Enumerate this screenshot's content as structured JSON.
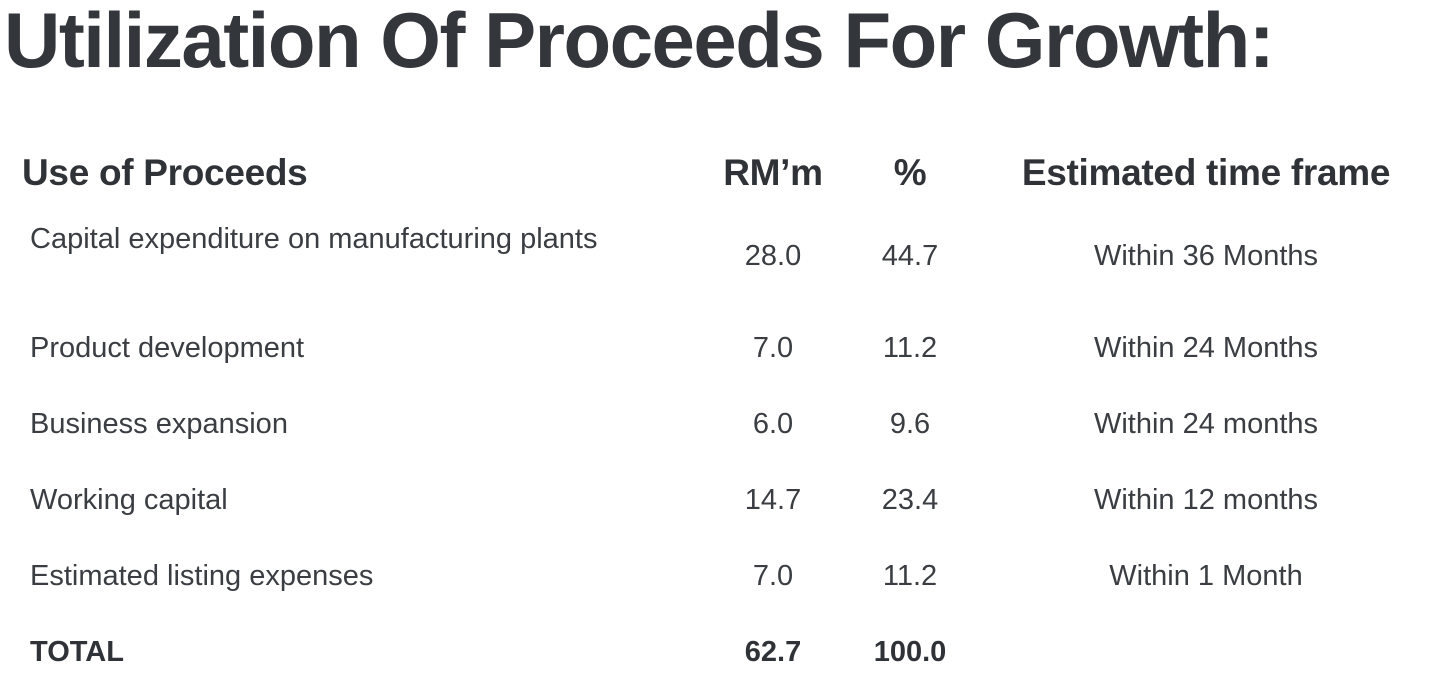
{
  "title": "Utilization Of Proceeds For Growth:",
  "table": {
    "headers": {
      "use": "Use of Proceeds",
      "rm": "RM’m",
      "pct": "%",
      "time": "Estimated time frame"
    },
    "rows": [
      {
        "use": "Capital expenditure on manufacturing plants",
        "rm": "28.0",
        "pct": "44.7",
        "time": "Within 36 Months"
      },
      {
        "use": "Product development",
        "rm": "7.0",
        "pct": "11.2",
        "time": "Within 24 Months"
      },
      {
        "use": "Business expansion",
        "rm": "6.0",
        "pct": "9.6",
        "time": "Within 24 months"
      },
      {
        "use": "Working capital",
        "rm": "14.7",
        "pct": "23.4",
        "time": "Within 12 months"
      },
      {
        "use": "Estimated listing expenses",
        "rm": "7.0",
        "pct": "11.2",
        "time": "Within 1 Month"
      }
    ],
    "total": {
      "label": "TOTAL",
      "rm": "62.7",
      "pct": "100.0"
    }
  }
}
